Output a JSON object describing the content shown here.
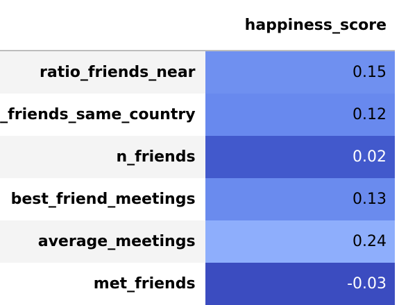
{
  "table": {
    "value_column_header": "happiness_score",
    "rows": [
      {
        "label": "ratio_friends_near",
        "value": "0.15",
        "bg": "#6f90f0",
        "fg": "#000000"
      },
      {
        "label": "ratio_friends_same_country",
        "value": "0.12",
        "bg": "#6889ee",
        "fg": "#000000"
      },
      {
        "label": "n_friends",
        "value": "0.02",
        "bg": "#4259cc",
        "fg": "#ffffff"
      },
      {
        "label": "best_friend_meetings",
        "value": "0.13",
        "bg": "#6a8bee",
        "fg": "#000000"
      },
      {
        "label": "average_meetings",
        "value": "0.24",
        "bg": "#8eaefc",
        "fg": "#000000"
      },
      {
        "label": "met_friends",
        "value": "-0.03",
        "bg": "#3b4cc0",
        "fg": "#ffffff"
      }
    ]
  }
}
